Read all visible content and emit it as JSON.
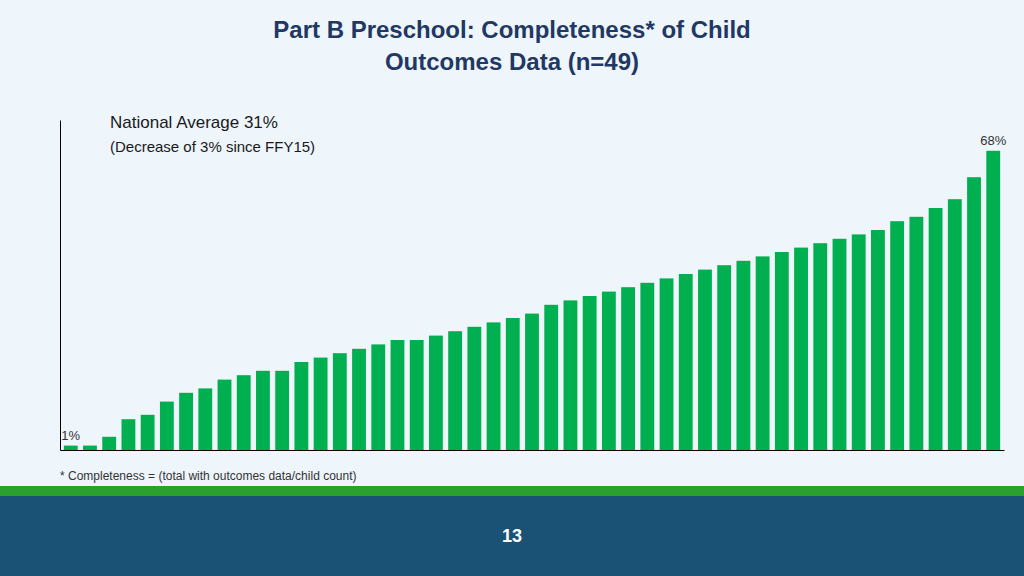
{
  "chart_data": {
    "type": "bar",
    "title": [
      "Part B Preschool: Completeness* of Child",
      "Outcomes Data (n=49)"
    ],
    "annotations": [
      "National Average 31%",
      "(Decrease of 3% since FFY15)",
      "* Completeness = (total with outcomes data/child count)",
      "13"
    ],
    "categories": [
      null,
      null,
      null,
      null,
      null,
      null,
      null,
      null,
      null,
      null,
      null,
      null,
      null,
      null,
      null,
      null,
      null,
      null,
      null,
      null,
      null,
      null,
      null,
      null,
      null,
      null,
      null,
      null,
      null,
      null,
      null,
      null,
      null,
      null,
      null,
      null,
      null,
      null,
      null,
      null,
      null,
      null,
      null,
      null,
      null,
      null,
      null,
      null,
      null
    ],
    "values": [
      1,
      1,
      3,
      7,
      8,
      11,
      13,
      14,
      16,
      17,
      18,
      18,
      20,
      21,
      22,
      23,
      24,
      25,
      25,
      26,
      27,
      28,
      29,
      30,
      31,
      33,
      34,
      35,
      36,
      37,
      38,
      39,
      40,
      41,
      42,
      43,
      44,
      45,
      46,
      47,
      48,
      49,
      50,
      52,
      53,
      55,
      57,
      62,
      68
    ],
    "value_labels": [
      "1%",
      null,
      null,
      null,
      null,
      null,
      null,
      null,
      null,
      null,
      null,
      null,
      null,
      null,
      null,
      null,
      null,
      null,
      null,
      null,
      null,
      null,
      null,
      null,
      null,
      null,
      null,
      null,
      null,
      null,
      null,
      null,
      null,
      null,
      null,
      null,
      null,
      null,
      null,
      null,
      null,
      null,
      null,
      null,
      null,
      null,
      null,
      null,
      "68%"
    ],
    "color": "#00B050",
    "ylim": [
      0,
      75
    ],
    "tick_labels": false,
    "grid": false
  }
}
